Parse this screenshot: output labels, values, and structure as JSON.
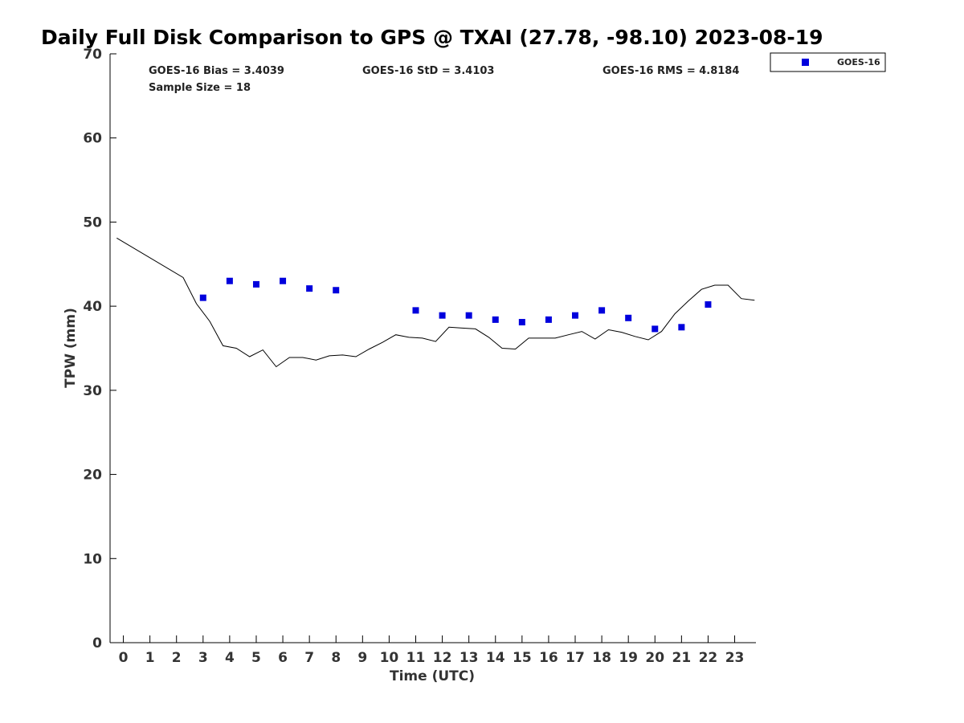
{
  "chart_data": {
    "type": "scatter",
    "title": "Daily Full Disk Comparison to GPS @ TXAI (27.78, -98.10) 2023-08-19",
    "xlabel": "Time (UTC)",
    "ylabel": "TPW (mm)",
    "xlim": [
      -0.5,
      23.8
    ],
    "ylim": [
      0,
      70
    ],
    "x_ticks": [
      0,
      1,
      2,
      3,
      4,
      5,
      6,
      7,
      8,
      9,
      10,
      11,
      12,
      13,
      14,
      15,
      16,
      17,
      18,
      19,
      20,
      21,
      22,
      23
    ],
    "y_ticks": [
      0,
      10,
      20,
      30,
      40,
      50,
      60,
      70
    ],
    "grid": false,
    "legend": {
      "position": "top-right",
      "entries": [
        "GOES-16"
      ]
    },
    "stats": {
      "bias": "GOES-16 Bias = 3.4039",
      "std": "GOES-16 StD = 3.4103",
      "rms": "GOES-16 RMS = 4.8184",
      "sample": "Sample Size = 18"
    },
    "series": [
      {
        "name": "GOES-16",
        "kind": "scatter",
        "color": "#0000dd",
        "marker": "square",
        "x": [
          3,
          4,
          5,
          6,
          7,
          8,
          11,
          12,
          13,
          14,
          15,
          16,
          17,
          18,
          19,
          20,
          21,
          22
        ],
        "y": [
          41.0,
          43.0,
          42.6,
          43.0,
          42.1,
          41.9,
          39.5,
          38.9,
          38.9,
          38.4,
          38.1,
          38.4,
          38.9,
          39.5,
          38.6,
          37.3,
          37.5,
          40.2
        ]
      },
      {
        "kind": "line",
        "color": "#000000",
        "x": [
          -0.25,
          2.25,
          2.75,
          3.25,
          3.75,
          4.25,
          4.75,
          5.25,
          5.75,
          6.25,
          6.75,
          7.25,
          7.75,
          8.25,
          8.75,
          9.25,
          9.75,
          10.25,
          10.75,
          11.25,
          11.75,
          12.25,
          12.75,
          13.25,
          13.75,
          14.25,
          14.75,
          15.25,
          15.75,
          16.25,
          16.75,
          17.25,
          17.75,
          18.25,
          18.75,
          19.25,
          19.75,
          20.25,
          20.75,
          21.25,
          21.75,
          22.25,
          22.75,
          23.25,
          23.75
        ],
        "y": [
          48.1,
          43.4,
          40.3,
          38.2,
          35.3,
          35.0,
          34.0,
          34.8,
          32.8,
          33.9,
          33.9,
          33.6,
          34.1,
          34.2,
          34.0,
          34.9,
          35.7,
          36.6,
          36.3,
          36.2,
          35.8,
          37.5,
          37.4,
          37.3,
          36.3,
          35.0,
          34.9,
          36.2,
          36.2,
          36.2,
          36.6,
          37.0,
          36.1,
          37.2,
          36.9,
          36.4,
          36.0,
          37.0,
          39.1,
          40.6,
          42.0,
          42.5,
          42.5,
          40.9,
          40.7
        ]
      }
    ]
  }
}
